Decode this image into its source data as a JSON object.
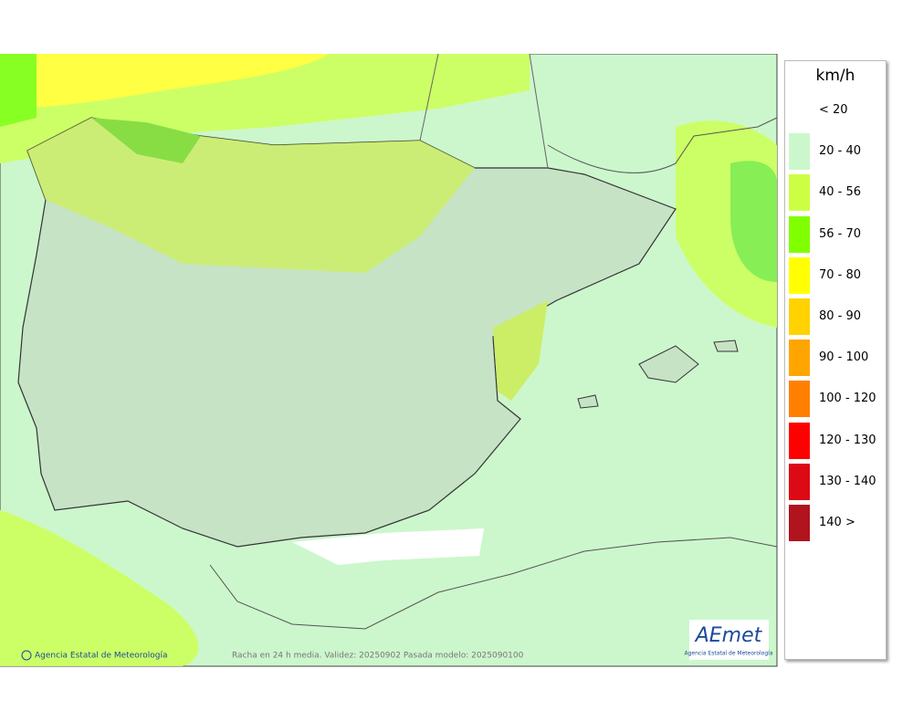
{
  "legend": {
    "title": "km/h",
    "items": [
      {
        "label": "< 20",
        "color": null
      },
      {
        "label": "20 - 40",
        "color": "#ccf7cc"
      },
      {
        "label": "40 - 56",
        "color": "#ccff44"
      },
      {
        "label": "56 - 70",
        "color": "#80ff00"
      },
      {
        "label": "70 - 80",
        "color": "#ffff00"
      },
      {
        "label": "80 - 90",
        "color": "#ffd200"
      },
      {
        "label": "90 - 100",
        "color": "#ffa500"
      },
      {
        "label": "100 - 120",
        "color": "#ff8000"
      },
      {
        "label": "120 - 130",
        "color": "#ff0000"
      },
      {
        "label": "130 - 140",
        "color": "#dc0a14"
      },
      {
        "label": "140 >",
        "color": "#b0141e"
      }
    ]
  },
  "footer": {
    "credit": "Agencia Estatal de Meteorología",
    "caption": "Racha en 24 h media. Validez: 20250902 Pasada modelo: 2025090100"
  },
  "logo": {
    "text": "AEmet",
    "subtitle": "Agencia Estatal de Meteorología"
  }
}
